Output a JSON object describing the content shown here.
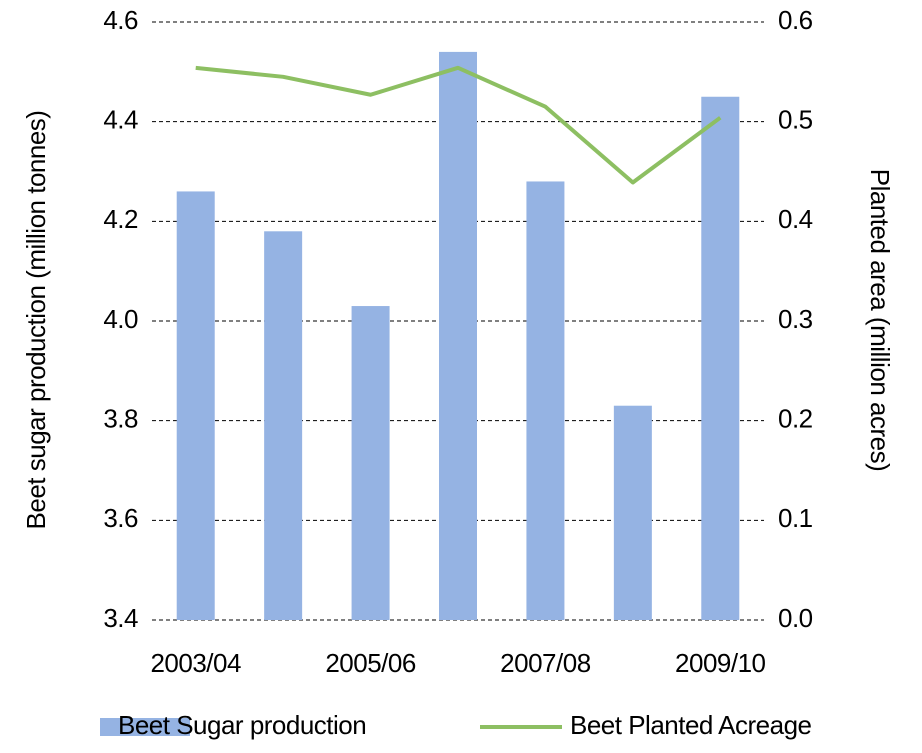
{
  "chart_data": {
    "type": "bar",
    "categories": [
      "2003/04",
      null,
      "2005/06",
      null,
      "2007/08",
      null,
      "2009/10"
    ],
    "series": [
      {
        "name": "Beet Sugar production",
        "color": "#95b3e3",
        "type": "bar",
        "values": [
          4.26,
          4.18,
          4.03,
          4.54,
          4.28,
          3.83,
          4.45
        ]
      },
      {
        "name": "Beet Planted Acreage",
        "color": "#8dbf62",
        "type": "line",
        "axis": "y2",
        "values": [
          0.554,
          0.545,
          0.527,
          0.554,
          0.515,
          0.439,
          0.504
        ]
      }
    ],
    "y_label": "Beet sugar production (million tonnes)",
    "y2_label": "Planted area (million acres)",
    "ylim": [
      3.4,
      4.6
    ],
    "yticks": [
      {
        "value": 3.4,
        "label": "3.4"
      },
      {
        "value": 3.6,
        "label": "3.6"
      },
      {
        "value": 3.8,
        "label": "3.8"
      },
      {
        "value": 4.0,
        "label": "4.0"
      },
      {
        "value": 4.2,
        "label": "4.2"
      },
      {
        "value": 4.4,
        "label": "4.4"
      },
      {
        "value": 4.6,
        "label": "4.6"
      }
    ],
    "y2lim": [
      0,
      0.6
    ],
    "y2ticks": [
      {
        "value": 0,
        "label": "0.0"
      },
      {
        "value": 0.1,
        "label": "0.1"
      },
      {
        "value": 0.2,
        "label": "0.2"
      },
      {
        "value": 0.3,
        "label": "0.3"
      },
      {
        "value": 0.4,
        "label": "0.4"
      },
      {
        "value": 0.5,
        "label": "0.5"
      },
      {
        "value": 0.6,
        "label": "0.6"
      }
    ],
    "grid": true,
    "legend": "bottom"
  }
}
